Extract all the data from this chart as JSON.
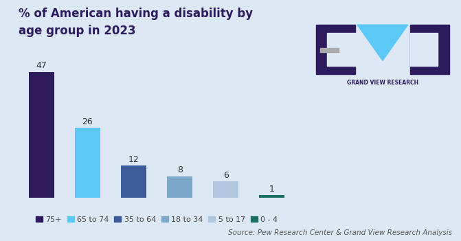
{
  "title": "% of American having a disability by\nage group in 2023",
  "categories": [
    "75+",
    "65 to 74",
    "35 to 64",
    "18 to 34",
    "5 to 17",
    "0 - 4"
  ],
  "values": [
    47,
    26,
    12,
    8,
    6,
    1
  ],
  "bar_colors": [
    "#2d1b5e",
    "#5bc8f5",
    "#3d5a99",
    "#7ba7c9",
    "#b3c6e0",
    "#1a7060"
  ],
  "background_color": "#dce9f5",
  "source_text": "Source: Pew Research Center & Grand View Research Analysis",
  "title_color": "#2d1b5e",
  "title_fontsize": 12,
  "bar_label_fontsize": 9,
  "legend_fontsize": 8,
  "source_fontsize": 7.5,
  "ylim": [
    0,
    54
  ],
  "logo_bg": "#2d1b5e",
  "logo_cyan": "#5bc8f5",
  "logo_text": "GRAND VIEW RESEARCH",
  "logo_text_color": "#2d1b5e"
}
